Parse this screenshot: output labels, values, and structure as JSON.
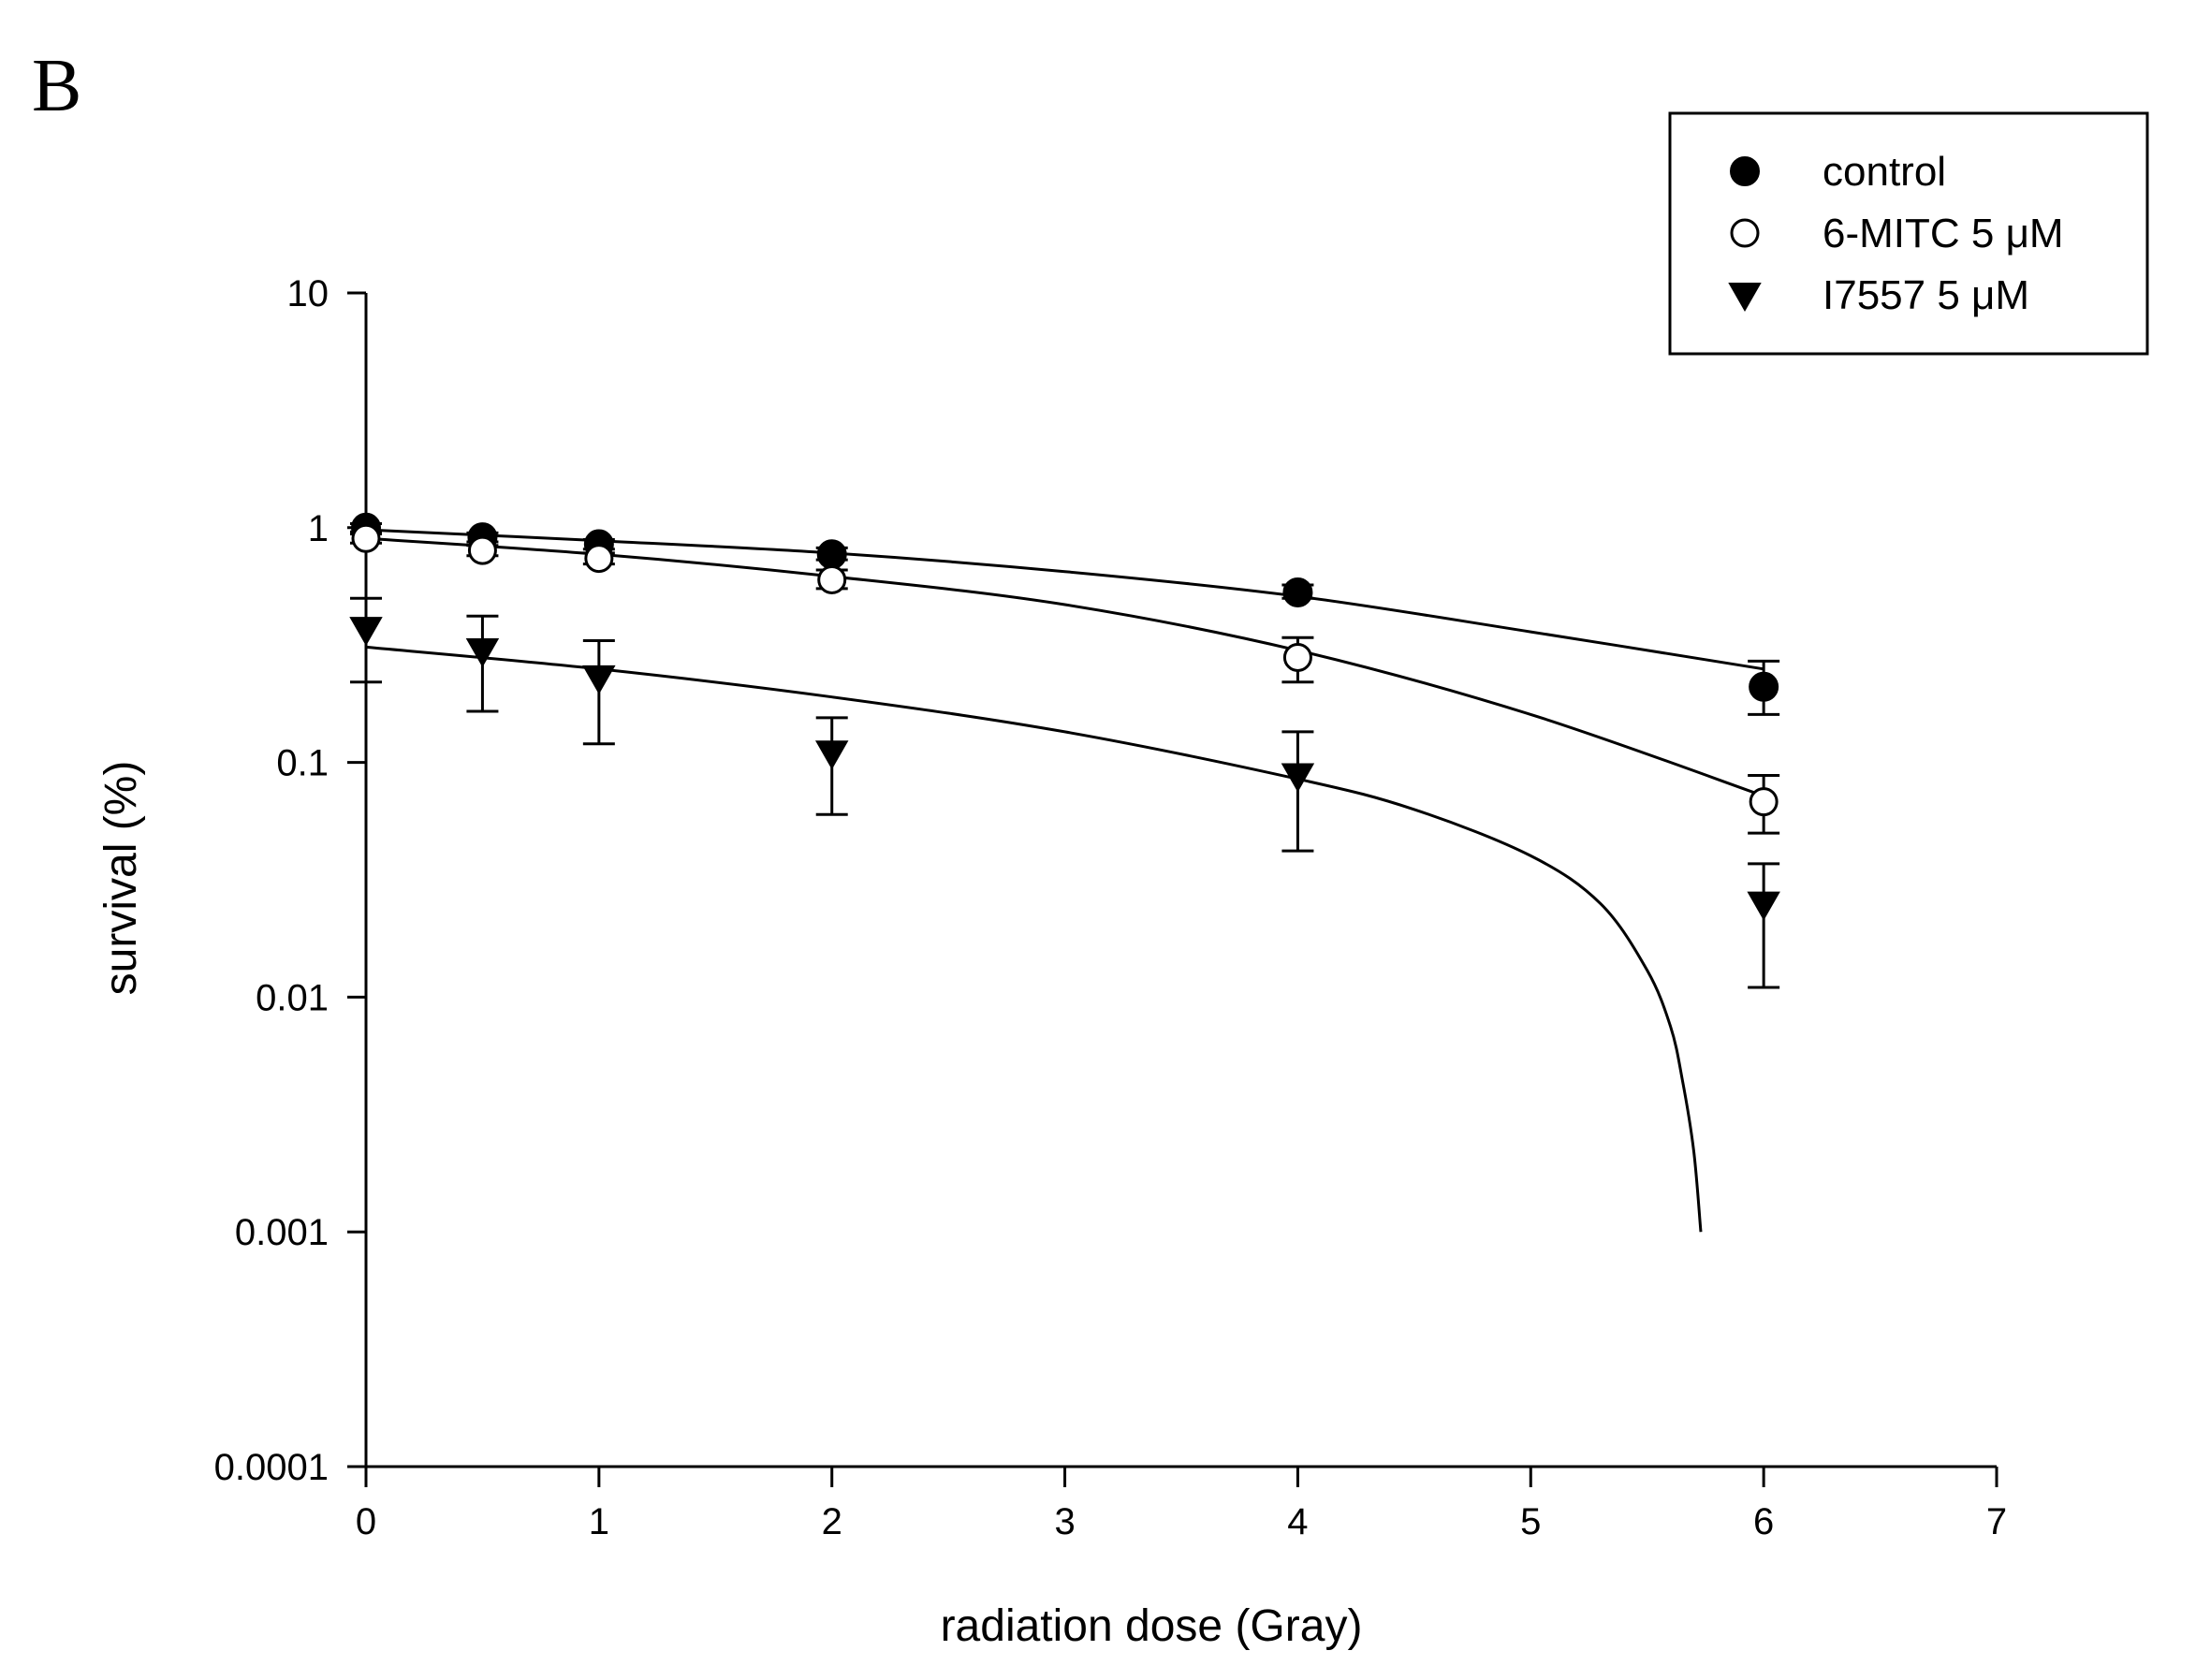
{
  "panel_label": "B",
  "chart_data": {
    "type": "scatter",
    "title": "",
    "xlabel": "radiation dose (Gray)",
    "ylabel": "survival (%)",
    "xscale": "linear",
    "yscale": "log",
    "xlim": [
      0,
      7
    ],
    "ylim": [
      0.0001,
      10
    ],
    "xticks": [
      0,
      1,
      2,
      3,
      4,
      5,
      6,
      7
    ],
    "xtick_labels": [
      "0",
      "1",
      "2",
      "3",
      "4",
      "5",
      "6",
      "7"
    ],
    "yticks": [
      0.0001,
      0.001,
      0.01,
      0.1,
      1,
      10
    ],
    "ytick_labels": [
      "0.0001",
      "0.001",
      "0.01",
      "0.1",
      "1",
      "10"
    ],
    "grid": false,
    "legend_position": "top-right",
    "series": [
      {
        "name": "control",
        "marker": "filled-circle",
        "x": [
          0,
          0.5,
          1,
          2,
          4,
          6
        ],
        "y": [
          1.0,
          0.91,
          0.85,
          0.77,
          0.53,
          0.21
        ],
        "err_low": [
          0.96,
          0.87,
          0.81,
          0.73,
          0.5,
          0.16
        ],
        "err_high": [
          1.04,
          0.95,
          0.89,
          0.82,
          0.57,
          0.27
        ],
        "fit": {
          "x": [
            0,
            1,
            2,
            3,
            4,
            5,
            6
          ],
          "y": [
            0.98,
            0.88,
            0.78,
            0.65,
            0.51,
            0.36,
            0.25
          ]
        }
      },
      {
        "name": "6-MITC 5 μM",
        "marker": "open-circle",
        "x": [
          0,
          0.5,
          1,
          2,
          4,
          6
        ],
        "y": [
          0.9,
          0.8,
          0.74,
          0.6,
          0.28,
          0.068
        ],
        "err_low": [
          0.86,
          0.76,
          0.7,
          0.55,
          0.22,
          0.05
        ],
        "err_high": [
          0.94,
          0.84,
          0.78,
          0.66,
          0.34,
          0.088
        ],
        "fit": {
          "x": [
            0,
            1,
            2,
            3,
            4,
            5,
            6
          ],
          "y": [
            0.9,
            0.77,
            0.62,
            0.47,
            0.3,
            0.16,
            0.072
          ]
        }
      },
      {
        "name": "I7557 5 μM",
        "marker": "filled-triangle-down",
        "x": [
          0,
          0.5,
          1,
          2,
          4,
          6
        ],
        "y": [
          0.37,
          0.3,
          0.23,
          0.11,
          0.088,
          0.025
        ],
        "err_low": [
          0.22,
          0.165,
          0.12,
          0.06,
          0.042,
          0.011
        ],
        "err_high": [
          0.5,
          0.42,
          0.33,
          0.155,
          0.135,
          0.037
        ],
        "fit": {
          "x": [
            0,
            1,
            2,
            3,
            4,
            4.5,
            5,
            5.3,
            5.5,
            5.6,
            5.65,
            5.7,
            5.73
          ],
          "y": [
            0.31,
            0.25,
            0.19,
            0.135,
            0.085,
            0.063,
            0.04,
            0.025,
            0.013,
            0.0075,
            0.0045,
            0.0022,
            0.001
          ]
        }
      }
    ]
  }
}
